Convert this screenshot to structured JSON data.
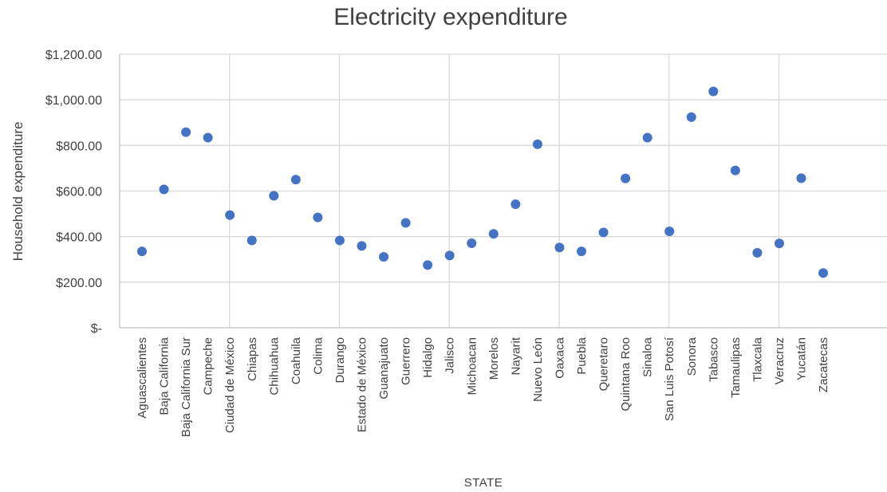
{
  "chart_data": {
    "type": "scatter",
    "title": "Electricity expenditure",
    "xlabel": "STATE",
    "ylabel": "Household expenditure",
    "ylim": [
      0,
      1200
    ],
    "yticks": [
      0,
      200,
      400,
      600,
      800,
      1000,
      1200
    ],
    "ytick_labels": [
      "$-",
      "$200.00",
      "$400.00",
      "$600.00",
      "$800.00",
      "$1,000.00",
      "$1,200.00"
    ],
    "grid": "vertical and horizontal",
    "marker_color": "#4472c4",
    "categories": [
      "Aguascalientes",
      "Baja California",
      "Baja California Sur",
      "Campeche",
      "Ciudad de México",
      "Chiapas",
      "Chihuahua",
      "Coahuila",
      "Colima",
      "Durango",
      "Estado de México",
      "Guanajuato",
      "Guerrero",
      "Hidalgo",
      "Jalisco",
      "Michoacan",
      "Morelos",
      "Nayarit",
      "Nuevo León",
      "Oaxaca",
      "Puebla",
      "Queretaro",
      "Quintana Roo",
      "Sinaloa",
      "San Luis Potosí",
      "Sonora",
      "Tabasco",
      "Tamaulipas",
      "Tlaxcala",
      "Veracruz",
      "Yucatán",
      "Zacatecas"
    ],
    "values": [
      335,
      607,
      858,
      834,
      494,
      383,
      579,
      650,
      484,
      383,
      359,
      311,
      460,
      275,
      317,
      371,
      412,
      542,
      805,
      352,
      335,
      418,
      655,
      834,
      423,
      924,
      1037,
      690,
      329,
      370,
      656,
      240
    ]
  }
}
